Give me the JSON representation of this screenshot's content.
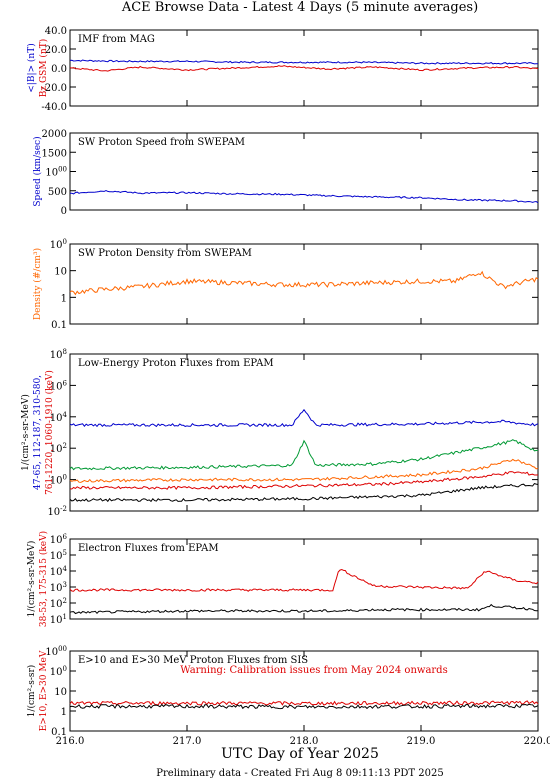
{
  "page": {
    "title": "ACE Browse Data - Latest 4 Days (5 minute averages)",
    "xlabel": "UTC Day of Year 2025",
    "footer": "Preliminary data - Created Fri Aug  8 09:11:13 PDT 2025"
  },
  "chart_data": [
    {
      "type": "line",
      "title": "IMF from MAG",
      "x_ticks": [
        "216.0",
        "217.0",
        "218.0",
        "219.0",
        "220.0"
      ],
      "xlim": [
        216,
        220
      ],
      "ylim": [
        -40,
        40
      ],
      "y_ticks": [
        "-40.0",
        "-20.0",
        "0.0",
        "20.0",
        "40.0"
      ],
      "ylabel_lines": [
        {
          "text": "<|B|> (nT)",
          "color": "#0000cc"
        },
        {
          "text": "Bz GSM (nT)",
          "color": "#dd0000"
        }
      ],
      "series": [
        {
          "name": "<|B|> (nT)",
          "color": "#0000cc",
          "x": [
            216.0,
            216.5,
            217.0,
            217.5,
            218.0,
            218.5,
            219.0,
            219.5,
            220.0
          ],
          "y": [
            8,
            7,
            7,
            6,
            6,
            6,
            5,
            5,
            5
          ]
        },
        {
          "name": "Bz GSM (nT)",
          "color": "#dd0000",
          "x": [
            216.0,
            216.3,
            216.6,
            217.0,
            217.4,
            217.8,
            218.2,
            218.6,
            219.0,
            219.4,
            219.8,
            220.0
          ],
          "y": [
            0,
            -3,
            1,
            -2,
            0,
            2,
            -1,
            1,
            -2,
            0,
            1,
            -1
          ]
        }
      ]
    },
    {
      "type": "line",
      "title": "SW Proton Speed from SWEPAM",
      "xlim": [
        216,
        220
      ],
      "ylim": [
        0,
        2000
      ],
      "y_ticks": [
        "0",
        "500",
        "1000",
        "1500",
        "2000"
      ],
      "ylabel_lines": [
        {
          "text": "Speed (km/sec)",
          "color": "#0000cc"
        }
      ],
      "series": [
        {
          "name": "Speed",
          "color": "#0000cc",
          "x": [
            216.0,
            216.3,
            216.6,
            217.0,
            217.4,
            217.8,
            218.2,
            218.6,
            219.0,
            219.4,
            219.8,
            220.0
          ],
          "y": [
            430,
            500,
            440,
            450,
            420,
            410,
            370,
            340,
            320,
            260,
            240,
            200
          ]
        }
      ]
    },
    {
      "type": "line",
      "title": "SW Proton Density from SWEPAM",
      "xlim": [
        216,
        220
      ],
      "log": true,
      "ylim": [
        0.1,
        100
      ],
      "y_ticks": [
        "0.1",
        "1",
        "10",
        "100"
      ],
      "ylabel_lines": [
        {
          "text": "Density (#/cm³)",
          "color": "#ff6600"
        }
      ],
      "series": [
        {
          "name": "Density",
          "color": "#ff6600",
          "x": [
            216.0,
            216.3,
            216.6,
            217.0,
            217.4,
            217.8,
            218.2,
            218.6,
            219.0,
            219.3,
            219.5,
            219.7,
            220.0
          ],
          "y": [
            1.5,
            2,
            2.5,
            4,
            3.5,
            3,
            3,
            3.5,
            4,
            4,
            9,
            2.5,
            5
          ]
        }
      ]
    },
    {
      "type": "line",
      "title": "Low-Energy Proton Fluxes from EPAM",
      "xlim": [
        216,
        220
      ],
      "log": true,
      "ylim": [
        0.01,
        100000000
      ],
      "y_ticks": [
        "10-2",
        "100",
        "102",
        "104",
        "106",
        "108"
      ],
      "ylabel_lines": [
        {
          "text": "1/(cm²-s-sr-MeV)",
          "color": "#000000"
        },
        {
          "text": "47-65, 112-187, 310-580,",
          "color": "#0000cc"
        },
        {
          "text": "761-1220, 1060-1910 (keV)",
          "color": "#dd0000"
        }
      ],
      "series": [
        {
          "name": "47-65",
          "color": "#0000cc",
          "x": [
            216.0,
            217.0,
            217.9,
            218.0,
            218.1,
            219.0,
            219.7,
            220.0
          ],
          "y": [
            3000,
            3000,
            3000,
            30000,
            3000,
            3500,
            5000,
            3000
          ]
        },
        {
          "name": "112-187",
          "color": "#009933",
          "x": [
            216.0,
            217.0,
            217.9,
            218.0,
            218.1,
            218.6,
            219.0,
            219.5,
            219.8,
            220.0
          ],
          "y": [
            5,
            6,
            8,
            300,
            8,
            10,
            20,
            100,
            300,
            60
          ]
        },
        {
          "name": "310-580",
          "color": "#ff6600",
          "x": [
            216.0,
            217.0,
            218.0,
            218.6,
            219.0,
            219.5,
            219.8,
            220.0
          ],
          "y": [
            0.8,
            1,
            1,
            1.5,
            2,
            5,
            20,
            5
          ]
        },
        {
          "name": "761-1220",
          "color": "#dd0000",
          "x": [
            216.0,
            217.0,
            218.0,
            218.6,
            219.0,
            219.5,
            219.8,
            220.0
          ],
          "y": [
            0.3,
            0.3,
            0.4,
            0.5,
            0.7,
            1.5,
            3,
            2
          ]
        },
        {
          "name": "1060-1910",
          "color": "#000000",
          "x": [
            216.0,
            217.0,
            218.0,
            218.6,
            219.0,
            219.5,
            220.0
          ],
          "y": [
            0.05,
            0.05,
            0.06,
            0.08,
            0.1,
            0.3,
            0.5
          ]
        }
      ]
    },
    {
      "type": "line",
      "title": "Electron Fluxes from EPAM",
      "xlim": [
        216,
        220
      ],
      "log": true,
      "ylim": [
        10,
        10000000
      ],
      "y_ticks": [
        "101",
        "102",
        "103",
        "104",
        "105",
        "106"
      ],
      "ylabel_lines": [
        {
          "text": "1/(cm²-s-sr-MeV)",
          "color": "#000000"
        },
        {
          "text": "38-53, 175-315 (keV)",
          "color": "#dd0000"
        }
      ],
      "series": [
        {
          "name": "38-53",
          "color": "#dd0000",
          "x": [
            216.0,
            217.0,
            218.0,
            218.25,
            218.3,
            218.6,
            219.4,
            219.55,
            219.8,
            220.0
          ],
          "y": [
            1500,
            1500,
            1500,
            1500,
            60000,
            3000,
            2000,
            40000,
            8000,
            5000
          ]
        },
        {
          "name": "175-315",
          "color": "#000000",
          "x": [
            216.0,
            217.0,
            218.3,
            218.6,
            219.5,
            219.6,
            220.0
          ],
          "y": [
            30,
            40,
            40,
            50,
            50,
            100,
            50
          ]
        }
      ]
    },
    {
      "type": "line",
      "title": "E>10 and E>30 MeV Proton Fluxes from SIS",
      "xlim": [
        216,
        220
      ],
      "log": true,
      "ylim": [
        0.1,
        1000
      ],
      "y_ticks": [
        "0.1",
        "1",
        "10",
        "100",
        "1000"
      ],
      "ylabel_lines": [
        {
          "text": "1/(cm²-s-sr)",
          "color": "#000000"
        },
        {
          "text": "E>10, E>30 MeV",
          "color": "#dd0000"
        }
      ],
      "annotation": "Warning: Calibration issues from May 2024 onwards",
      "series": [
        {
          "name": "E>10",
          "color": "#dd0000",
          "x": [
            216.0,
            217.0,
            218.0,
            219.0,
            220.0
          ],
          "y": [
            2.4,
            2.5,
            2.4,
            2.5,
            2.6
          ]
        },
        {
          "name": "E>30",
          "color": "#000000",
          "x": [
            216.0,
            217.0,
            218.0,
            219.0,
            220.0
          ],
          "y": [
            1.7,
            1.7,
            1.6,
            1.7,
            1.8
          ]
        }
      ]
    }
  ]
}
